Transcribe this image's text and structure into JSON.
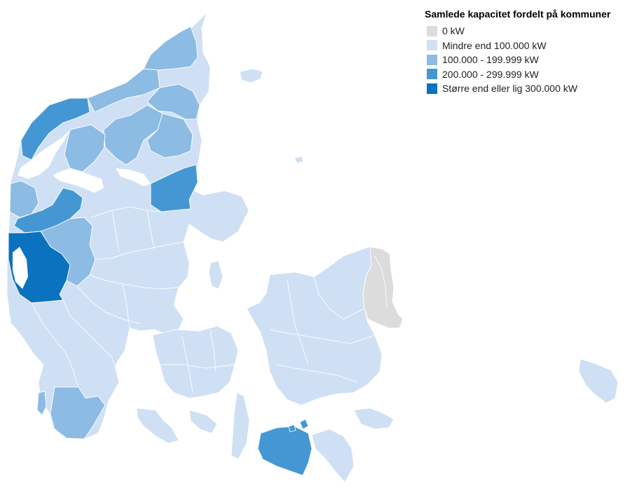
{
  "legend": {
    "title": "Samlede kapacitet fordelt på kommuner",
    "items": [
      {
        "label": "0 kW",
        "color": "#dcdcdc"
      },
      {
        "label": "Mindre end 100.000 kW",
        "color": "#cfe0f4"
      },
      {
        "label": "100.000 - 199.999 kW",
        "color": "#8cbbe3"
      },
      {
        "label": "200.000 - 299.999 kW",
        "color": "#4497d3"
      },
      {
        "label": "Større end eller lig 300.000 kW",
        "color": "#0a72bf"
      }
    ]
  },
  "map": {
    "subject": "Danish municipalities (kommuner)",
    "region_classes": {
      "jylland_base": 1,
      "north_jutland_west": 2,
      "north_jutland_north": 2,
      "thy_coast": 3,
      "skive_area": 3,
      "ringkobing_skjern": 4,
      "herning_area": 2,
      "djursland": 3,
      "esbjerg_area": 2,
      "lolland": 3,
      "copenhagen_area": 0,
      "zealand": 1,
      "fyn": 1,
      "bornholm": 1
    }
  }
}
